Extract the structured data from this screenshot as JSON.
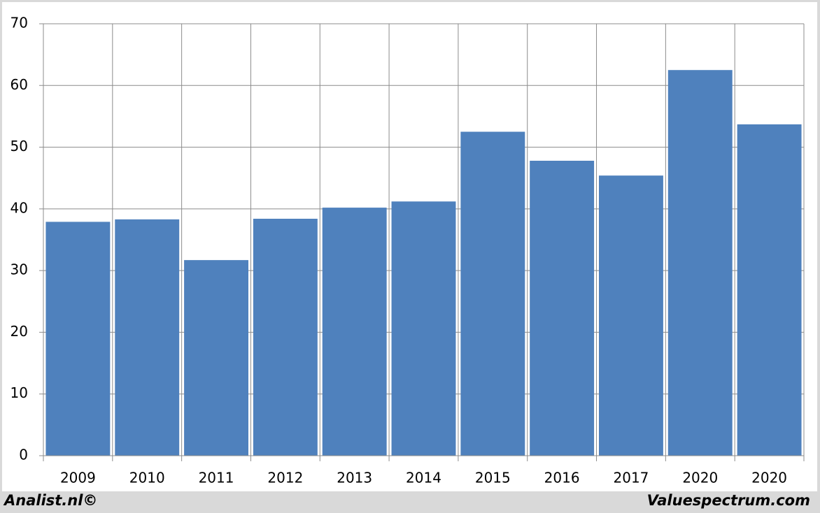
{
  "chart_data": {
    "type": "bar",
    "categories": [
      "2009",
      "2010",
      "2011",
      "2012",
      "2013",
      "2014",
      "2015",
      "2016",
      "2017",
      "2020",
      "2020"
    ],
    "values": [
      37.9,
      38.3,
      31.7,
      38.4,
      40.2,
      41.2,
      52.5,
      47.8,
      45.4,
      62.5,
      53.7
    ],
    "color": "#4f81bd",
    "ylim": [
      0,
      70
    ],
    "yticks": [
      0,
      10,
      20,
      30,
      40,
      50,
      60,
      70
    ],
    "grid": true
  },
  "footer": {
    "left": "Analist.nl©",
    "right": "Valuespectrum.com"
  }
}
